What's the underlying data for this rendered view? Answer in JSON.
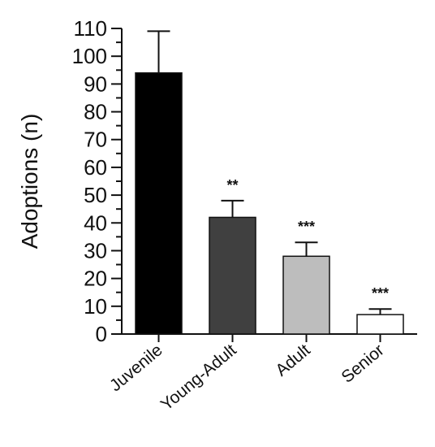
{
  "chart_data": {
    "type": "bar",
    "categories": [
      "Juvenile",
      "Young-Adult",
      "Adult",
      "Senior"
    ],
    "values": [
      94,
      42,
      28,
      7
    ],
    "errors": [
      15,
      6,
      5,
      2
    ],
    "significance": [
      "",
      "**",
      "***",
      "***"
    ],
    "colors": [
      "#000000",
      "#404040",
      "#bdbdbd",
      "#ffffff"
    ],
    "title": "",
    "xlabel": "",
    "ylabel": "Adoptions (n)",
    "ylim": [
      0,
      110
    ],
    "yticks": [
      0,
      10,
      20,
      30,
      40,
      50,
      60,
      70,
      80,
      90,
      100,
      110
    ],
    "grid": false,
    "legend": "none"
  }
}
